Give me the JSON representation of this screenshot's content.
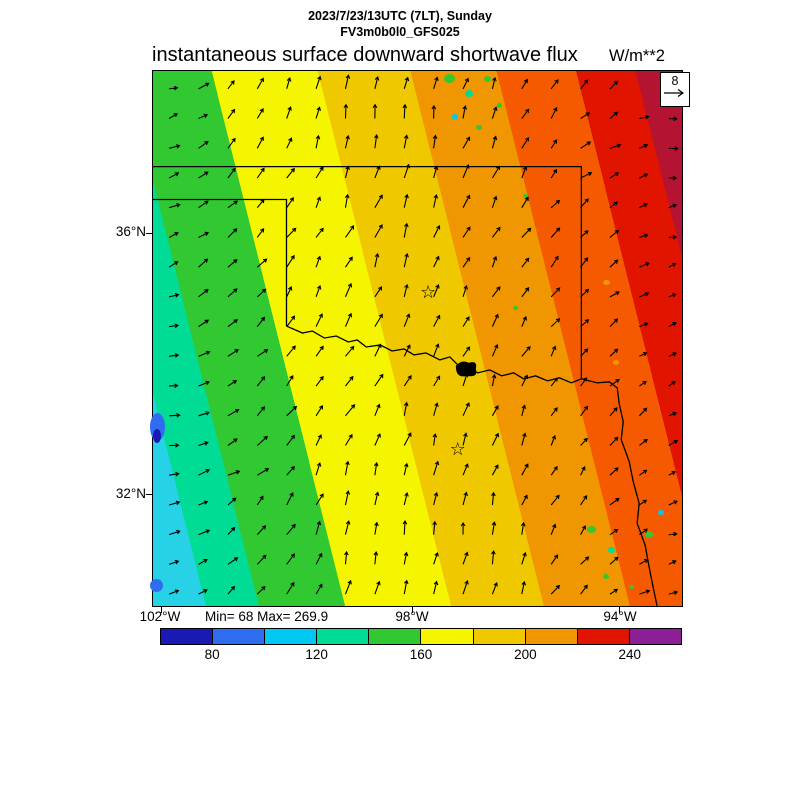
{
  "header": {
    "datetime": "2023/7/23/13UTC (7LT), Sunday",
    "model": "FV3m0b0l0_GFS025",
    "title": "instantaneous surface downward shortwave flux",
    "units": "W/m**2"
  },
  "stats_text": "Min= 68 Max= 269.9",
  "reference_vector": {
    "label": "8"
  },
  "chart_data": {
    "type": "heatmap",
    "title": "instantaneous surface downward shortwave flux",
    "units": "W/m**2",
    "valid_time": "2023/7/23/13UTC (7LT), Sunday",
    "model": "FV3m0b0l0_GFS025",
    "min": 68,
    "max": 269.9,
    "x_ticks": [
      "102°W",
      "98°W",
      "94°W"
    ],
    "y_ticks": [
      "36°N",
      "32°N"
    ],
    "reference_vector": 8,
    "legend_position": "bottom",
    "colorbar": {
      "tick_values": [
        "80",
        "120",
        "160",
        "200",
        "240"
      ],
      "segment_colors": [
        "#1919b4",
        "#2f6df0",
        "#00c8f0",
        "#00dc96",
        "#32c832",
        "#f5f500",
        "#f0c800",
        "#f09600",
        "#e11400",
        "#8c1e96"
      ]
    },
    "field_bands": [
      {
        "color": "#28d2e6",
        "to": 8
      },
      {
        "color": "#00dc96",
        "to": 16
      },
      {
        "color": "#32c832",
        "to": 29
      },
      {
        "color": "#f5f500",
        "to": 45
      },
      {
        "color": "#f0c800",
        "to": 59
      },
      {
        "color": "#f09600",
        "to": 72
      },
      {
        "color": "#f55a00",
        "to": 84
      },
      {
        "color": "#e11400",
        "to": 93
      },
      {
        "color": "#b41432",
        "to": 100
      }
    ],
    "markers": {
      "stars": [
        {
          "x": 52,
          "y": 41.5
        },
        {
          "x": 57.6,
          "y": 70.8
        }
      ]
    },
    "patches": [
      {
        "x": -0.5,
        "y": 64,
        "w": 15,
        "h": 28,
        "c": "#2f6df0"
      },
      {
        "x": 0,
        "y": 67,
        "w": 8,
        "h": 14,
        "c": "#1919b4"
      },
      {
        "x": -0.5,
        "y": 95,
        "w": 13,
        "h": 13,
        "c": "#2f6df0"
      },
      {
        "x": 55,
        "y": 0.5,
        "w": 11,
        "h": 9,
        "c": "#32c832"
      },
      {
        "x": 59,
        "y": 3.5,
        "w": 8,
        "h": 7,
        "c": "#00dc96"
      },
      {
        "x": 62.5,
        "y": 1,
        "w": 7,
        "h": 6,
        "c": "#32c832"
      },
      {
        "x": 56.5,
        "y": 8,
        "w": 6,
        "h": 6,
        "c": "#00c8f0"
      },
      {
        "x": 61,
        "y": 10,
        "w": 6,
        "h": 5,
        "c": "#32c832"
      },
      {
        "x": 65,
        "y": 6,
        "w": 5,
        "h": 5,
        "c": "#32c832"
      },
      {
        "x": 70,
        "y": 23,
        "w": 5,
        "h": 4,
        "c": "#32c832"
      },
      {
        "x": 68,
        "y": 44,
        "w": 5,
        "h": 4,
        "c": "#32c832"
      },
      {
        "x": 85,
        "y": 39,
        "w": 7,
        "h": 5,
        "c": "#f09600"
      },
      {
        "x": 87,
        "y": 54,
        "w": 6,
        "h": 5,
        "c": "#f09600"
      },
      {
        "x": 82,
        "y": 85,
        "w": 9,
        "h": 7,
        "c": "#32c832"
      },
      {
        "x": 86,
        "y": 89,
        "w": 7,
        "h": 6,
        "c": "#00dc96"
      },
      {
        "x": 93,
        "y": 86,
        "w": 8,
        "h": 7,
        "c": "#32c832"
      },
      {
        "x": 95.5,
        "y": 82,
        "w": 6,
        "h": 5,
        "c": "#00c8f0"
      },
      {
        "x": 85,
        "y": 94,
        "w": 6,
        "h": 5,
        "c": "#32c832"
      },
      {
        "x": 90,
        "y": 96,
        "w": 5,
        "h": 4,
        "c": "#32c832"
      }
    ]
  }
}
